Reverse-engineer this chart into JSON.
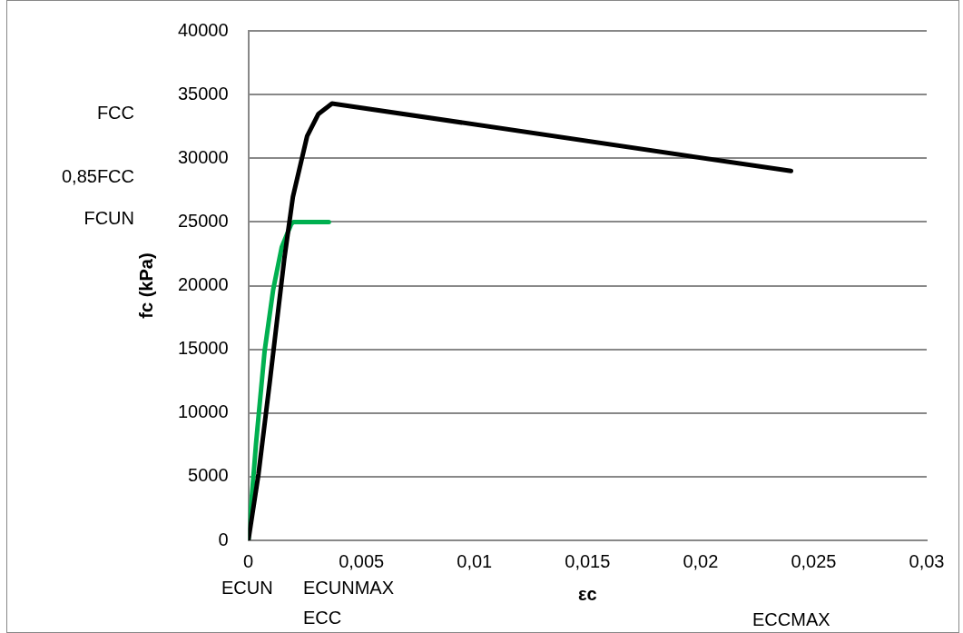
{
  "chart_data": {
    "type": "line",
    "xlabel": "εc",
    "ylabel": "fc (kPa)",
    "xlim": [
      0,
      0.03
    ],
    "xticks": [
      {
        "value": 0,
        "label": "0"
      },
      {
        "value": 0.005,
        "label": "0,005"
      },
      {
        "value": 0.01,
        "label": "0,01"
      },
      {
        "value": 0.015,
        "label": "0,015"
      },
      {
        "value": 0.02,
        "label": "0,02"
      },
      {
        "value": 0.025,
        "label": "0,025"
      },
      {
        "value": 0.03,
        "label": "0,03"
      }
    ],
    "ylim": [
      0,
      40000
    ],
    "yticks": [
      0,
      5000,
      10000,
      15000,
      20000,
      25000,
      30000,
      35000,
      40000
    ],
    "grid": "y",
    "legend": false,
    "marker": "none",
    "line_style": "solid",
    "series": [
      {
        "color": "#000000",
        "x": [
          0,
          0.00045,
          0.00095,
          0.00159,
          0.00197,
          0.0026,
          0.0031,
          0.0037,
          0.024
        ],
        "values": [
          0,
          5220,
          12460,
          22100,
          26960,
          31740,
          33480,
          34300,
          29000
        ]
      },
      {
        "color": "#00b050",
        "x": [
          0,
          0.00034,
          0.00072,
          0.0011,
          0.00148,
          0.0019,
          0.002,
          0.00356
        ],
        "values": [
          0,
          7600,
          14860,
          19700,
          23040,
          24850,
          25000,
          25000
        ]
      }
    ],
    "annotations": [
      "FCC",
      "0,85FCC",
      "FCUN",
      "ECUN",
      "ECUNMAX",
      "ECC",
      "ECCMAX"
    ]
  }
}
